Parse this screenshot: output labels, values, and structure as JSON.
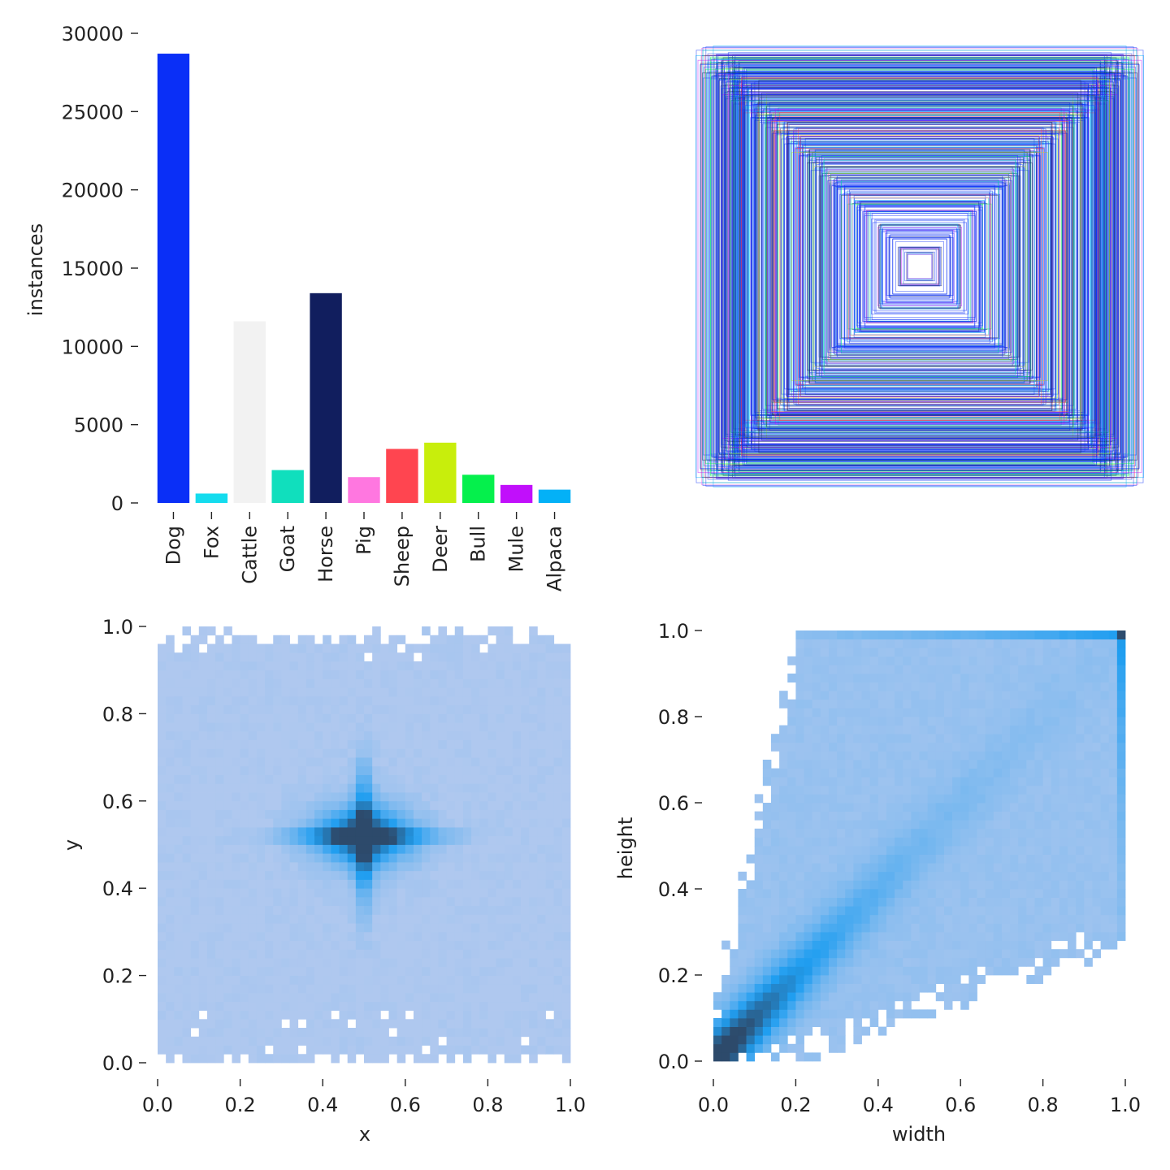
{
  "chart_data": [
    {
      "type": "bar",
      "categories": [
        "Dog",
        "Fox",
        "Cattle",
        "Goat",
        "Horse",
        "Pig",
        "Sheep",
        "Deer",
        "Bull",
        "Mule",
        "Alpaca"
      ],
      "values": [
        28700,
        600,
        11600,
        2100,
        13400,
        1650,
        3450,
        3850,
        1800,
        1150,
        850
      ],
      "colors": [
        "#0a2ff7",
        "#14dcee",
        "#f2f2f2",
        "#10dfbd",
        "#111e5e",
        "#ff77e0",
        "#ff4550",
        "#c8ee0c",
        "#05f04c",
        "#c10ffb",
        "#03b1f7"
      ],
      "xlabel": "",
      "ylabel": "instances",
      "ylim": [
        0,
        30000
      ],
      "yticks": [
        "0",
        "5000",
        "10000",
        "15000",
        "20000",
        "25000",
        "30000"
      ],
      "grid": false
    },
    {
      "type": "other",
      "description_kind": "overlaid bounding boxes",
      "box_colors": [
        "#0a2ff7",
        "#111e5e",
        "#14dcee",
        "#10dfbd",
        "#ff77e0",
        "#ff4550",
        "#c8ee0c",
        "#05f04c",
        "#c10ffb",
        "#03b1f7"
      ]
    },
    {
      "type": "heatmap",
      "xlabel": "x",
      "ylabel": "y",
      "xlim": [
        0,
        1
      ],
      "ylim": [
        0,
        1
      ],
      "xticks": [
        "0.0",
        "0.2",
        "0.4",
        "0.6",
        "0.8",
        "1.0"
      ],
      "yticks": [
        "0.0",
        "0.2",
        "0.4",
        "0.6",
        "0.8",
        "1.0"
      ],
      "peak": [
        0.5,
        0.52
      ],
      "bins": 50,
      "colors": [
        "#afc8ef",
        "#209ef0",
        "#2d4a6b"
      ]
    },
    {
      "type": "heatmap",
      "xlabel": "width",
      "ylabel": "height",
      "xlim": [
        0,
        1
      ],
      "ylim": [
        0,
        1
      ],
      "xticks": [
        "0.0",
        "0.2",
        "0.4",
        "0.6",
        "0.8",
        "1.0"
      ],
      "yticks": [
        "0.0",
        "0.2",
        "0.4",
        "0.6",
        "0.8",
        "1.0"
      ],
      "peak": [
        0.05,
        0.05
      ],
      "bins": 50,
      "colors": [
        "#afc8ef",
        "#209ef0",
        "#2d4a6b"
      ]
    }
  ]
}
